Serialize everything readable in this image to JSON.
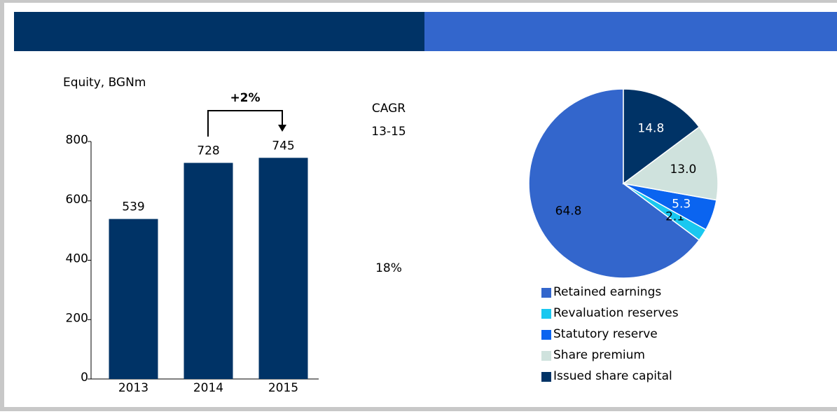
{
  "chart_data": [
    {
      "type": "bar",
      "ylabel": "Equity, BGNm",
      "categories": [
        "2013",
        "2014",
        "2015"
      ],
      "values": [
        539,
        728,
        745
      ],
      "color": "#003366",
      "ylim": [
        0,
        800
      ],
      "yticks": [
        0,
        200,
        400,
        600,
        800
      ],
      "annotations": [
        "+2%",
        "CAGR",
        "13-15",
        "18%"
      ]
    },
    {
      "type": "pie",
      "categories": [
        "Retained earnings",
        "Revaluation reserves",
        "Statutory reserve",
        "Share premium",
        "Issued share capital"
      ],
      "values": [
        64.8,
        2.1,
        5.3,
        13.0,
        14.8
      ],
      "value_labels": [
        "64.8",
        "2.1",
        "5.3",
        "13.0",
        "14.8"
      ],
      "colors": [
        "#3366cc",
        "#19c8f0",
        "#0a64f0",
        "#cfe2dd",
        "#003366"
      ],
      "label_colors": [
        "#000000",
        "#000000",
        "#ffffff",
        "#000000",
        "#ffffff"
      ]
    }
  ]
}
